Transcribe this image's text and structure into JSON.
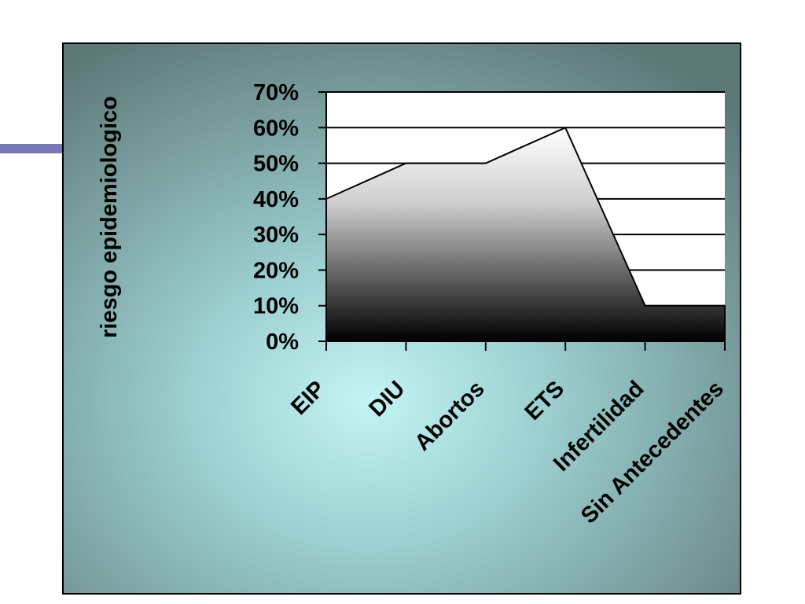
{
  "chart_data": {
    "type": "area",
    "y_label": "riesgo epidemiologico",
    "categories": [
      "EIP",
      "DIU",
      "Abortos",
      "ETS",
      "Infertilidad",
      "Sin Antecedentes"
    ],
    "values": [
      40,
      50,
      50,
      60,
      10,
      10
    ],
    "ylim": [
      0,
      70
    ],
    "yticks": [
      {
        "value": 0,
        "label": "0%"
      },
      {
        "value": 10,
        "label": "10%"
      },
      {
        "value": 20,
        "label": "20%"
      },
      {
        "value": 30,
        "label": "30%"
      },
      {
        "value": 40,
        "label": "40%"
      },
      {
        "value": 50,
        "label": "50%"
      },
      {
        "value": 60,
        "label": "60%"
      },
      {
        "value": 70,
        "label": "70%"
      }
    ],
    "grid": true
  }
}
